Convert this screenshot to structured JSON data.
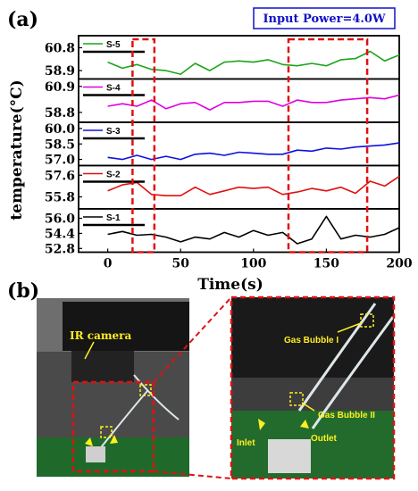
{
  "figure": {
    "panel_a_label": "(a)",
    "panel_b_label": "(b)",
    "power_label": "Input Power=4.0W"
  },
  "chart_data": {
    "type": "line",
    "xlabel": "Time(s)",
    "ylabel": "temperature(°C)",
    "xlim": [
      -20,
      200
    ],
    "xticks": [
      "0",
      "50",
      "100",
      "150",
      "200"
    ],
    "highlight_windows": [
      [
        17,
        32
      ],
      [
        124,
        178
      ]
    ],
    "x": [
      0,
      10,
      20,
      30,
      40,
      50,
      60,
      70,
      80,
      90,
      100,
      110,
      120,
      130,
      140,
      150,
      160,
      170,
      180,
      190,
      200
    ],
    "subplots": [
      {
        "name": "S-5",
        "color": "#1aa51a",
        "ylim": [
          58.2,
          61.8
        ],
        "yticks": [
          60.8,
          58.9
        ],
        "ytick_labels": [
          "60.8",
          "58.9"
        ],
        "values": [
          59.6,
          59.1,
          59.4,
          59.0,
          58.9,
          58.6,
          59.5,
          58.9,
          59.6,
          59.7,
          59.6,
          59.8,
          59.4,
          59.3,
          59.5,
          59.3,
          59.8,
          59.9,
          60.5,
          59.7,
          60.2
        ]
      },
      {
        "name": "S-4",
        "color": "#e000e0",
        "ylim": [
          58.0,
          61.5
        ],
        "yticks": [
          60.9,
          58.8
        ],
        "ytick_labels": [
          "60.9",
          "58.8"
        ],
        "values": [
          59.3,
          59.5,
          59.3,
          59.8,
          59.1,
          59.5,
          59.6,
          59.0,
          59.6,
          59.6,
          59.7,
          59.7,
          59.3,
          59.8,
          59.6,
          59.6,
          59.8,
          59.9,
          60.0,
          59.9,
          60.2
        ]
      },
      {
        "name": "S-3",
        "color": "#1010e0",
        "ylim": [
          56.4,
          60.6
        ],
        "yticks": [
          60.0,
          58.5,
          57.0
        ],
        "ytick_labels": [
          "60.0",
          "58.5",
          "57.0"
        ],
        "values": [
          57.2,
          57.0,
          57.4,
          57.0,
          57.3,
          57.0,
          57.5,
          57.6,
          57.4,
          57.7,
          57.6,
          57.5,
          57.5,
          57.9,
          57.8,
          58.1,
          58.0,
          58.2,
          58.3,
          58.4,
          58.6
        ]
      },
      {
        "name": "S-2",
        "color": "#e01010",
        "ylim": [
          54.8,
          58.4
        ],
        "yticks": [
          57.6,
          55.8
        ],
        "ytick_labels": [
          "57.6",
          "55.8"
        ],
        "values": [
          56.3,
          56.8,
          57.0,
          56.0,
          55.9,
          55.9,
          56.6,
          56.0,
          56.3,
          56.6,
          56.5,
          56.6,
          56.0,
          56.2,
          56.5,
          56.3,
          56.6,
          56.1,
          57.1,
          56.7,
          57.5
        ]
      },
      {
        "name": "S-1",
        "color": "#000000",
        "ylim": [
          52.4,
          57.0
        ],
        "yticks": [
          56.0,
          54.4,
          52.8
        ],
        "ytick_labels": [
          "56.0",
          "54.4",
          "52.8"
        ],
        "values": [
          54.3,
          54.6,
          54.2,
          54.3,
          54.0,
          53.5,
          54.0,
          53.8,
          54.5,
          54.0,
          54.7,
          54.2,
          54.5,
          53.3,
          53.8,
          56.2,
          53.8,
          54.2,
          54.0,
          54.3,
          55.0
        ]
      }
    ]
  },
  "photo_annotations": {
    "ir_camera": "IR camera",
    "gas_bubble_1": "Gas Bubble I",
    "gas_bubble_2": "Gas Bubble II",
    "inlet": "Inlet",
    "outlet": "Outlet"
  },
  "colors": {
    "highlight": "#e01010",
    "annotation": "#ffef20",
    "power_box": "#1010c8"
  }
}
